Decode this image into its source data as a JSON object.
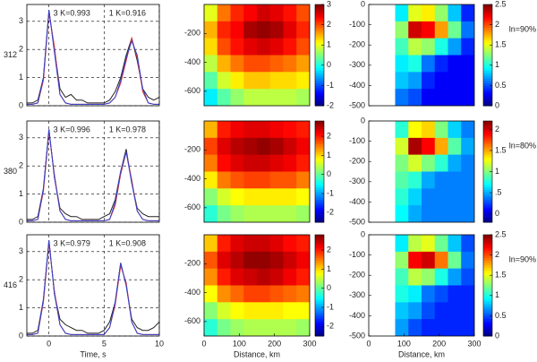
{
  "chart_data": [
    {
      "type": "line",
      "ylabel": "312",
      "annotations": [
        "3 K=0.993",
        "1 K=0.916"
      ],
      "xlim": [
        -2,
        10
      ],
      "ylim": [
        0,
        3.6
      ],
      "xticks": [
        0,
        5,
        10
      ],
      "yticks": [
        0,
        1,
        2,
        3
      ],
      "grid": true,
      "x": [
        -2,
        -1.5,
        -1,
        -0.5,
        0,
        0.5,
        1,
        1.5,
        2,
        2.5,
        3,
        3.5,
        4,
        4.5,
        5,
        5.5,
        6,
        6.5,
        7,
        7.5,
        8,
        8.5,
        9,
        9.5,
        10
      ],
      "series": [
        {
          "color": "#222222",
          "values": [
            0.1,
            0.1,
            0.2,
            1.0,
            3.4,
            2.0,
            0.6,
            0.3,
            0.4,
            0.2,
            0.2,
            0.1,
            0.1,
            0.1,
            0.1,
            0.2,
            0.5,
            1.0,
            1.8,
            2.4,
            1.6,
            0.6,
            0.3,
            0.2,
            0.3
          ]
        },
        {
          "color": "#e03030",
          "values": [
            0.05,
            0.05,
            0.1,
            0.9,
            3.3,
            2.1,
            0.4,
            0.1,
            0.05,
            0.05,
            0.05,
            0.05,
            0.05,
            0.05,
            0.05,
            0.1,
            0.3,
            0.8,
            1.6,
            2.4,
            1.7,
            0.5,
            0.1,
            0.05,
            0.05
          ]
        },
        {
          "color": "#3040d0",
          "values": [
            0.05,
            0.05,
            0.1,
            1.0,
            3.4,
            1.9,
            0.4,
            0.1,
            0.05,
            0.05,
            0.05,
            0.05,
            0.05,
            0.05,
            0.05,
            0.1,
            0.3,
            0.9,
            1.7,
            2.3,
            1.8,
            0.6,
            0.1,
            0.05,
            0.05
          ]
        }
      ]
    },
    {
      "type": "heatmap",
      "xlim": [
        0,
        300
      ],
      "ylim": [
        -700,
        0
      ],
      "yticks": [
        -200,
        -400,
        -600
      ],
      "clim": [
        -2,
        3
      ],
      "colorbar_ticks": [
        3,
        2,
        1,
        0,
        -1,
        -2
      ],
      "x": [
        19,
        56,
        94,
        131,
        169,
        206,
        244,
        281
      ],
      "y": [
        -58,
        -175,
        -292,
        -408,
        -525,
        -642
      ],
      "z": [
        [
          1.0,
          1.8,
          2.2,
          2.4,
          2.6,
          2.5,
          2.3,
          2.0
        ],
        [
          1.5,
          2.2,
          2.4,
          2.8,
          2.9,
          2.8,
          2.5,
          2.2
        ],
        [
          1.3,
          2.0,
          2.3,
          2.5,
          2.6,
          2.5,
          2.3,
          2.0
        ],
        [
          0.8,
          1.5,
          1.8,
          2.0,
          2.0,
          1.9,
          1.8,
          1.6
        ],
        [
          0.3,
          0.9,
          1.2,
          1.4,
          1.4,
          1.3,
          1.3,
          1.2
        ],
        [
          -0.2,
          0.3,
          0.6,
          0.8,
          0.8,
          0.8,
          0.8,
          0.7
        ]
      ]
    },
    {
      "type": "heatmap",
      "annotations": [
        "ln=90%"
      ],
      "xlim": [
        0,
        300
      ],
      "ylim": [
        -500,
        0
      ],
      "yticks": [
        0,
        -100,
        -200,
        -300,
        -400,
        -500
      ],
      "clim": [
        0,
        2.5
      ],
      "colorbar_ticks": [
        2.5,
        2,
        1.5,
        1,
        0.5,
        0
      ],
      "x": [
        19,
        56,
        94,
        131,
        169,
        206,
        244,
        281
      ],
      "y": [
        -42,
        -125,
        -208,
        -292,
        -375,
        -458
      ],
      "z": [
        [
          null,
          null,
          0.9,
          1.5,
          1.6,
          1.3,
          0.8,
          0.4
        ],
        [
          null,
          null,
          1.3,
          2.3,
          2.2,
          1.8,
          1.2,
          0.6
        ],
        [
          null,
          null,
          1.1,
          1.4,
          1.3,
          1.0,
          0.7,
          0.4
        ],
        [
          null,
          null,
          0.9,
          1.0,
          0.6,
          0.4,
          0.3,
          0.3
        ],
        [
          null,
          null,
          0.8,
          0.7,
          0.4,
          0.3,
          0.3,
          0.3
        ],
        [
          null,
          null,
          0.6,
          0.5,
          0.3,
          0.3,
          0.3,
          0.3
        ]
      ]
    },
    {
      "type": "line",
      "ylabel": "380",
      "annotations": [
        "3 K=0.996",
        "1 K=0.978"
      ],
      "xlim": [
        -2,
        10
      ],
      "ylim": [
        0,
        3.6
      ],
      "xticks": [
        0,
        5,
        10
      ],
      "yticks": [
        0,
        1,
        2,
        3
      ],
      "grid": true,
      "x": [
        -2,
        -1.5,
        -1,
        -0.5,
        0,
        0.5,
        1,
        1.5,
        2,
        2.5,
        3,
        3.5,
        4,
        4.5,
        5,
        5.5,
        6,
        6.5,
        7,
        7.5,
        8,
        8.5,
        9,
        9.5,
        10
      ],
      "series": [
        {
          "color": "#222222",
          "values": [
            0.1,
            0.1,
            0.2,
            1.2,
            3.3,
            1.6,
            0.5,
            0.3,
            0.2,
            0.2,
            0.1,
            0.1,
            0.1,
            0.1,
            0.2,
            0.3,
            0.8,
            1.8,
            2.6,
            1.4,
            0.5,
            0.3,
            0.2,
            0.2,
            0.2
          ]
        },
        {
          "color": "#e03030",
          "values": [
            0.05,
            0.05,
            0.1,
            1.1,
            3.2,
            1.7,
            0.4,
            0.1,
            0.05,
            0.05,
            0.05,
            0.05,
            0.05,
            0.05,
            0.05,
            0.1,
            0.6,
            1.7,
            2.5,
            1.5,
            0.4,
            0.1,
            0.05,
            0.05,
            0.05
          ]
        },
        {
          "color": "#3040d0",
          "values": [
            0.05,
            0.05,
            0.1,
            1.2,
            3.3,
            1.6,
            0.4,
            0.1,
            0.05,
            0.05,
            0.05,
            0.05,
            0.05,
            0.05,
            0.05,
            0.1,
            0.7,
            1.8,
            2.5,
            1.4,
            0.4,
            0.1,
            0.05,
            0.05,
            0.05
          ]
        }
      ]
    },
    {
      "type": "heatmap",
      "xlim": [
        0,
        300
      ],
      "ylim": [
        -700,
        0
      ],
      "yticks": [
        -200,
        -400,
        -600
      ],
      "clim": [
        -2.5,
        2.8
      ],
      "colorbar_ticks": [
        2,
        1,
        0,
        -1,
        -2
      ],
      "x": [
        19,
        56,
        94,
        131,
        169,
        206,
        244,
        281
      ],
      "y": [
        -58,
        -175,
        -292,
        -408,
        -525,
        -642
      ],
      "z": [
        [
          1.2,
          2.0,
          2.2,
          2.3,
          2.3,
          2.2,
          2.1,
          2.0
        ],
        [
          1.8,
          2.3,
          2.5,
          2.6,
          2.7,
          2.6,
          2.4,
          2.2
        ],
        [
          1.5,
          2.1,
          2.3,
          2.4,
          2.4,
          2.3,
          2.2,
          2.0
        ],
        [
          0.9,
          1.5,
          1.7,
          1.8,
          1.8,
          1.7,
          1.7,
          1.5
        ],
        [
          0.2,
          0.6,
          0.8,
          0.9,
          0.9,
          0.9,
          0.9,
          0.8
        ],
        [
          -0.3,
          0.1,
          0.3,
          0.4,
          0.4,
          0.4,
          0.4,
          0.3
        ]
      ]
    },
    {
      "type": "heatmap",
      "annotations": [
        "ln=80%"
      ],
      "xlim": [
        0,
        300
      ],
      "ylim": [
        -500,
        0
      ],
      "yticks": [
        0,
        -100,
        -200,
        -300,
        -400,
        -500
      ],
      "clim": [
        -0.2,
        2.2
      ],
      "colorbar_ticks": [
        2,
        1.5,
        1,
        {
          "value": 0.5,
          "label": ".5"
        },
        0
      ],
      "x": [
        19,
        56,
        94,
        131,
        169,
        206,
        244,
        281
      ],
      "y": [
        -42,
        -125,
        -208,
        -292,
        -375,
        -458
      ],
      "z": [
        [
          null,
          null,
          0.8,
          1.3,
          1.4,
          1.0,
          0.6,
          0.4
        ],
        [
          null,
          null,
          1.2,
          2.1,
          1.9,
          1.5,
          0.9,
          0.5
        ],
        [
          null,
          null,
          1.0,
          1.2,
          1.0,
          0.8,
          0.5,
          0.4
        ],
        [
          null,
          null,
          0.9,
          0.8,
          0.5,
          0.4,
          0.4,
          0.4
        ],
        [
          null,
          null,
          0.8,
          0.6,
          0.4,
          0.4,
          0.4,
          0.4
        ],
        [
          null,
          null,
          0.7,
          0.5,
          0.4,
          0.4,
          0.4,
          0.4
        ]
      ]
    },
    {
      "type": "line",
      "ylabel": "416",
      "xlabel": "Time, s",
      "annotations": [
        "3 K=0.979",
        "1 K=0.908"
      ],
      "xlim": [
        -2,
        10
      ],
      "ylim": [
        0,
        3.6
      ],
      "xticks": [
        0,
        5,
        10
      ],
      "yticks": [
        0,
        1,
        2,
        3
      ],
      "grid": true,
      "x": [
        -2,
        -1.5,
        -1,
        -0.5,
        0,
        0.5,
        1,
        1.5,
        2,
        2.5,
        3,
        3.5,
        4,
        4.5,
        5,
        5.5,
        6,
        6.5,
        7,
        7.5,
        8,
        8.5,
        9,
        9.5,
        10
      ],
      "series": [
        {
          "color": "#222222",
          "values": [
            0.1,
            0.1,
            0.2,
            1.3,
            3.4,
            1.5,
            0.6,
            0.4,
            0.3,
            0.2,
            0.2,
            0.1,
            0.1,
            0.1,
            0.2,
            0.5,
            1.2,
            2.6,
            1.8,
            0.6,
            0.3,
            0.2,
            0.2,
            0.3,
            0.5
          ]
        },
        {
          "color": "#e03030",
          "values": [
            0.05,
            0.05,
            0.1,
            1.2,
            3.3,
            1.6,
            0.4,
            0.1,
            0.05,
            0.05,
            0.05,
            0.05,
            0.05,
            0.05,
            0.05,
            0.3,
            1.1,
            2.5,
            1.9,
            0.5,
            0.1,
            0.05,
            0.05,
            0.05,
            0.05
          ]
        },
        {
          "color": "#3040d0",
          "values": [
            0.05,
            0.05,
            0.1,
            1.3,
            3.4,
            1.5,
            0.4,
            0.1,
            0.05,
            0.05,
            0.05,
            0.05,
            0.05,
            0.05,
            0.05,
            0.3,
            1.2,
            2.6,
            1.8,
            0.5,
            0.1,
            0.05,
            0.05,
            0.05,
            0.05
          ]
        }
      ]
    },
    {
      "type": "heatmap",
      "xlabel": "Distance, km",
      "xlim": [
        0,
        300
      ],
      "ylim": [
        -700,
        0
      ],
      "xticks": [
        0,
        100,
        200,
        300
      ],
      "yticks": [
        -200,
        -400,
        -600
      ],
      "clim": [
        -2.5,
        2.8
      ],
      "colorbar_ticks": [
        2,
        1,
        0,
        -1,
        -2
      ],
      "x": [
        19,
        56,
        94,
        131,
        169,
        206,
        244,
        281
      ],
      "y": [
        -58,
        -175,
        -292,
        -408,
        -525,
        -642
      ],
      "z": [
        [
          1.1,
          2.0,
          2.3,
          2.4,
          2.4,
          2.3,
          2.1,
          2.0
        ],
        [
          1.7,
          2.3,
          2.5,
          2.7,
          2.7,
          2.6,
          2.4,
          2.2
        ],
        [
          1.4,
          2.0,
          2.3,
          2.4,
          2.5,
          2.4,
          2.2,
          2.0
        ],
        [
          0.8,
          1.4,
          1.6,
          1.8,
          1.8,
          1.7,
          1.6,
          1.5
        ],
        [
          0.2,
          0.6,
          0.8,
          0.9,
          0.9,
          0.9,
          0.8,
          0.8
        ],
        [
          -0.3,
          0.1,
          0.3,
          0.4,
          0.4,
          0.4,
          0.4,
          0.3
        ]
      ]
    },
    {
      "type": "heatmap",
      "xlabel": "Distance, km",
      "annotations": [
        "ln=90%"
      ],
      "xlim": [
        0,
        300
      ],
      "ylim": [
        -500,
        0
      ],
      "xticks": [
        0,
        100,
        200,
        300
      ],
      "yticks": [
        0,
        -100,
        -200,
        -300,
        -400,
        -500
      ],
      "clim": [
        0,
        2.5
      ],
      "colorbar_ticks": [
        2.5,
        2,
        1.5,
        1,
        0.5,
        0
      ],
      "x": [
        19,
        56,
        94,
        131,
        169,
        206,
        244,
        281
      ],
      "y": [
        -42,
        -125,
        -208,
        -292,
        -375,
        -458
      ],
      "z": [
        [
          null,
          null,
          0.9,
          1.4,
          1.5,
          1.2,
          0.8,
          0.5
        ],
        [
          null,
          null,
          1.3,
          2.2,
          2.3,
          1.9,
          1.2,
          0.6
        ],
        [
          null,
          null,
          1.1,
          1.4,
          1.3,
          1.0,
          0.7,
          0.5
        ],
        [
          null,
          null,
          1.0,
          0.9,
          0.6,
          0.5,
          0.4,
          0.4
        ],
        [
          null,
          null,
          0.8,
          0.7,
          0.5,
          0.4,
          0.4,
          0.4
        ],
        [
          null,
          null,
          0.7,
          0.5,
          0.4,
          0.4,
          0.4,
          0.4
        ]
      ]
    }
  ]
}
